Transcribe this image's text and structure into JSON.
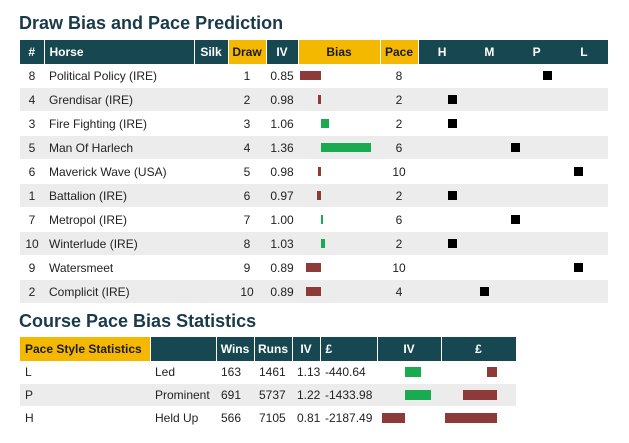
{
  "draw_section": {
    "title": "Draw Bias and Pace Prediction",
    "headers": {
      "num": "#",
      "horse": "Horse",
      "silk": "Silk",
      "draw": "Draw",
      "iv": "IV",
      "bias": "Bias",
      "pace": "Pace",
      "h": "H",
      "m": "M",
      "p": "P",
      "l": "L"
    },
    "rows": [
      {
        "num": "8",
        "horse": "Political Policy (IRE)",
        "draw": "1",
        "iv": "0.85",
        "bias": 0.85,
        "pace": "8",
        "pace_value": 8
      },
      {
        "num": "4",
        "horse": "Grendisar (IRE)",
        "draw": "2",
        "iv": "0.98",
        "bias": 0.98,
        "pace": "2",
        "pace_value": 2
      },
      {
        "num": "3",
        "horse": "Fire Fighting (IRE)",
        "draw": "3",
        "iv": "1.06",
        "bias": 1.06,
        "pace": "2",
        "pace_value": 2
      },
      {
        "num": "5",
        "horse": "Man Of Harlech",
        "draw": "4",
        "iv": "1.36",
        "bias": 1.36,
        "pace": "6",
        "pace_value": 6
      },
      {
        "num": "6",
        "horse": "Maverick Wave (USA)",
        "draw": "5",
        "iv": "0.98",
        "bias": 0.98,
        "pace": "10",
        "pace_value": 10
      },
      {
        "num": "1",
        "horse": "Battalion (IRE)",
        "draw": "6",
        "iv": "0.97",
        "bias": 0.97,
        "pace": "2",
        "pace_value": 2
      },
      {
        "num": "7",
        "horse": "Metropol (IRE)",
        "draw": "7",
        "iv": "1.00",
        "bias": 1.0,
        "pace": "6",
        "pace_value": 6
      },
      {
        "num": "10",
        "horse": "Winterlude (IRE)",
        "draw": "8",
        "iv": "1.03",
        "bias": 1.03,
        "pace": "2",
        "pace_value": 2
      },
      {
        "num": "9",
        "horse": "Watersmeet",
        "draw": "9",
        "iv": "0.89",
        "bias": 0.89,
        "pace": "10",
        "pace_value": 10
      },
      {
        "num": "2",
        "horse": "Complicit (IRE)",
        "draw": "10",
        "iv": "0.89",
        "bias": 0.89,
        "pace": "4",
        "pace_value": 4
      }
    ]
  },
  "pace_section": {
    "title": "Course Pace Bias Statistics",
    "headers": {
      "style": "Pace Style Statistics",
      "wins": "Wins",
      "runs": "Runs",
      "iv": "IV",
      "pounds": "£",
      "iv_bar": "IV",
      "pounds_bar": "£"
    },
    "rows": [
      {
        "code": "L",
        "style": "Led",
        "wins": "163",
        "runs": "1461",
        "iv": "1.13",
        "pounds": "-440.64",
        "iv_value": 1.13,
        "pounds_value": -440.64
      },
      {
        "code": "P",
        "style": "Prominent",
        "wins": "691",
        "runs": "5737",
        "iv": "1.22",
        "pounds": "-1433.98",
        "iv_value": 1.22,
        "pounds_value": -1433.98
      },
      {
        "code": "H",
        "style": "Held Up",
        "wins": "566",
        "runs": "7105",
        "iv": "0.81",
        "pounds": "-2187.49",
        "iv_value": 0.81,
        "pounds_value": -2187.49
      }
    ]
  },
  "colors": {
    "header_bg": "#174852",
    "header_gold": "#f5b800",
    "bar_positive": "#1aaa52",
    "bar_negative": "#8f3a3a"
  }
}
